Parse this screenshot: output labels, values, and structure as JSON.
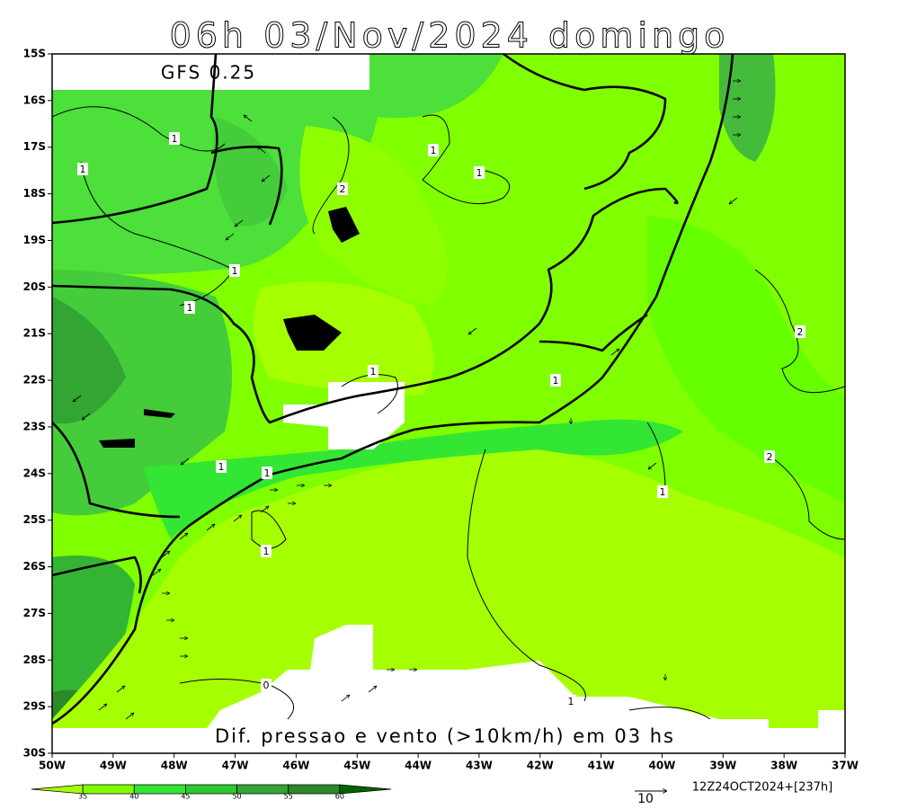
{
  "header": {
    "title": "06h 03/Nov/2024 domingo",
    "model": "GFS 0.25",
    "caption": "Dif. pressao e vento (>10km/h) em 03 hs"
  },
  "axes": {
    "lat_labels": [
      "15S",
      "16S",
      "17S",
      "18S",
      "19S",
      "20S",
      "21S",
      "22S",
      "23S",
      "24S",
      "25S",
      "26S",
      "27S",
      "28S",
      "29S",
      "30S"
    ],
    "lon_labels": [
      "50W",
      "49W",
      "48W",
      "47W",
      "46W",
      "45W",
      "44W",
      "43W",
      "42W",
      "41W",
      "40W",
      "39W",
      "38W",
      "37W"
    ]
  },
  "colorbar": {
    "levels": [
      35,
      40,
      45,
      50,
      55,
      60
    ]
  },
  "vector_reference": {
    "label": "10",
    "run": "12Z24OCT2024+[237h]"
  },
  "contour_labels": [
    "1",
    "1",
    "1",
    "1",
    "2",
    "1",
    "1",
    "1",
    "1",
    "1",
    "1",
    "1",
    "1",
    "0",
    "1",
    "2",
    "2"
  ]
}
